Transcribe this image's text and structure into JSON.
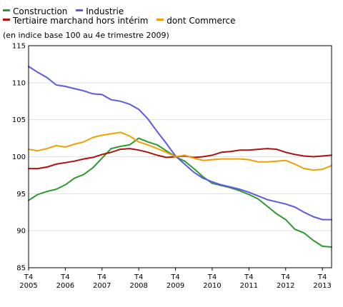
{
  "chart_data": {
    "type": "line",
    "subtitle": "(en indice base 100 au 4e trimestre 2009)",
    "ylim": [
      85,
      115
    ],
    "yticks": [
      85,
      90,
      95,
      100,
      105,
      110,
      115
    ],
    "xlim": [
      2005.75,
      2014.0
    ],
    "xticks": [
      {
        "x": 2005.75,
        "top": "T4",
        "bottom": "2005"
      },
      {
        "x": 2006.75,
        "top": "T4",
        "bottom": "2006"
      },
      {
        "x": 2007.75,
        "top": "T4",
        "bottom": "2007"
      },
      {
        "x": 2008.75,
        "top": "T4",
        "bottom": "2008"
      },
      {
        "x": 2009.75,
        "top": "T4",
        "bottom": "2009"
      },
      {
        "x": 2010.75,
        "top": "T4",
        "bottom": "2010"
      },
      {
        "x": 2011.75,
        "top": "T4",
        "bottom": "2011"
      },
      {
        "x": 2012.75,
        "top": "T4",
        "bottom": "2012"
      },
      {
        "x": 2013.75,
        "top": "T4",
        "bottom": "2013"
      }
    ],
    "grid": "horizontal",
    "legend_position": "top-left",
    "x": [
      2005.75,
      2006.0,
      2006.25,
      2006.5,
      2006.75,
      2007.0,
      2007.25,
      2007.5,
      2007.75,
      2008.0,
      2008.25,
      2008.5,
      2008.75,
      2009.0,
      2009.25,
      2009.5,
      2009.75,
      2010.0,
      2010.25,
      2010.5,
      2010.75,
      2011.0,
      2011.25,
      2011.5,
      2011.75,
      2012.0,
      2012.25,
      2012.5,
      2012.75,
      2013.0,
      2013.25,
      2013.5,
      2013.75,
      2014.0
    ],
    "series": [
      {
        "name": "Construction",
        "color": "#2e9a2e",
        "values": [
          94.1,
          94.9,
          95.3,
          95.6,
          96.2,
          97.1,
          97.6,
          98.5,
          99.8,
          101.1,
          101.4,
          101.6,
          102.5,
          102.0,
          101.6,
          100.8,
          100.0,
          99.4,
          98.4,
          97.3,
          96.4,
          96.1,
          95.8,
          95.4,
          94.9,
          94.3,
          93.3,
          92.3,
          91.5,
          90.2,
          89.7,
          88.7,
          87.9,
          87.8
        ]
      },
      {
        "name": "Industrie",
        "color": "#5a5ae6",
        "values": [
          112.2,
          111.4,
          110.7,
          109.7,
          109.5,
          109.2,
          108.9,
          108.5,
          108.4,
          107.7,
          107.5,
          107.1,
          106.4,
          105.1,
          103.4,
          101.8,
          100.1,
          99.0,
          97.9,
          97.1,
          96.6,
          96.2,
          95.9,
          95.6,
          95.2,
          94.7,
          94.2,
          93.9,
          93.6,
          93.2,
          92.5,
          91.9,
          91.5,
          91.5
        ]
      },
      {
        "name": "Tertiaire marchand hors intérim",
        "color": "#b01010",
        "values": [
          98.4,
          98.4,
          98.6,
          99.0,
          99.2,
          99.4,
          99.7,
          99.9,
          100.3,
          100.6,
          101.0,
          101.1,
          100.9,
          100.6,
          100.2,
          99.9,
          100.0,
          100.1,
          99.9,
          100.0,
          100.2,
          100.6,
          100.7,
          100.9,
          100.9,
          101.0,
          101.1,
          101.0,
          100.6,
          100.3,
          100.1,
          100.0,
          100.1,
          100.2
        ]
      },
      {
        "name": "dont Commerce",
        "color": "#f0a000",
        "values": [
          101.0,
          100.8,
          101.1,
          101.5,
          101.3,
          101.7,
          102.0,
          102.6,
          102.9,
          103.1,
          103.3,
          102.8,
          102.0,
          101.6,
          101.1,
          100.6,
          100.0,
          100.2,
          99.8,
          99.5,
          99.6,
          99.7,
          99.7,
          99.7,
          99.6,
          99.3,
          99.3,
          99.4,
          99.5,
          99.0,
          98.4,
          98.2,
          98.3,
          98.8
        ]
      }
    ]
  }
}
